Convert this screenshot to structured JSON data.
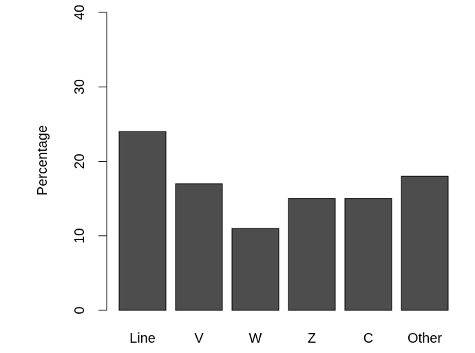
{
  "chart_data": {
    "type": "bar",
    "categories": [
      "Line",
      "V",
      "W",
      "Z",
      "C",
      "Other"
    ],
    "values": [
      24,
      17,
      11,
      15,
      15,
      18
    ],
    "ylabel": "Percentage",
    "ylim": [
      0,
      40
    ],
    "yticks": [
      0,
      10,
      20,
      30,
      40
    ],
    "grid": false,
    "legend": "none",
    "colors": {
      "bar_fill": "#4d4d4d",
      "bar_stroke": "#000000",
      "axis": "#000000",
      "text": "#000000"
    }
  }
}
